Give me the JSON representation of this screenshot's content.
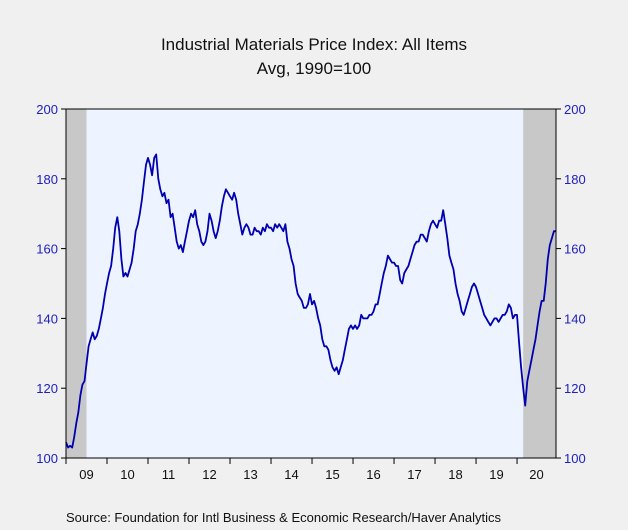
{
  "chart_data": {
    "type": "line",
    "title": "Industrial Materials Price Index: All Items",
    "subtitle": "Avg, 1990=100",
    "source": "Source:  Foundation for Intl Business & Economic Research/Haver Analytics",
    "ylim": [
      100,
      200
    ],
    "yticks": [
      100,
      120,
      140,
      160,
      180,
      200
    ],
    "x_start": 2009.0,
    "x_end": 2020.95,
    "xtick_labels": [
      "09",
      "10",
      "11",
      "12",
      "13",
      "14",
      "15",
      "16",
      "17",
      "18",
      "19",
      "20"
    ],
    "grid": false,
    "recessions": [
      {
        "start": 2009.0,
        "end": 2009.5
      },
      {
        "start": 2020.15,
        "end": 2020.95
      }
    ],
    "colors": {
      "line": "#0000b0",
      "plot_bg": "#eef4ff",
      "recession": "#c8c8c8",
      "axis_labels": "#2020c0"
    },
    "series": [
      {
        "points": [
          [
            2009.0,
            104.5
          ],
          [
            2009.05,
            103
          ],
          [
            2009.1,
            103.5
          ],
          [
            2009.15,
            103
          ],
          [
            2009.2,
            106
          ],
          [
            2009.25,
            110
          ],
          [
            2009.3,
            113
          ],
          [
            2009.35,
            118
          ],
          [
            2009.4,
            121
          ],
          [
            2009.45,
            122
          ],
          [
            2009.5,
            127
          ],
          [
            2009.55,
            132
          ],
          [
            2009.6,
            134
          ],
          [
            2009.65,
            136
          ],
          [
            2009.7,
            134
          ],
          [
            2009.75,
            135
          ],
          [
            2009.8,
            137
          ],
          [
            2009.85,
            140
          ],
          [
            2009.9,
            143
          ],
          [
            2009.95,
            147
          ],
          [
            2010.0,
            150
          ],
          [
            2010.05,
            153
          ],
          [
            2010.1,
            155
          ],
          [
            2010.15,
            160
          ],
          [
            2010.2,
            166
          ],
          [
            2010.25,
            169
          ],
          [
            2010.3,
            165
          ],
          [
            2010.35,
            157
          ],
          [
            2010.4,
            152
          ],
          [
            2010.45,
            153
          ],
          [
            2010.5,
            152
          ],
          [
            2010.55,
            154
          ],
          [
            2010.6,
            156
          ],
          [
            2010.65,
            160
          ],
          [
            2010.7,
            165
          ],
          [
            2010.75,
            167
          ],
          [
            2010.8,
            170
          ],
          [
            2010.85,
            174
          ],
          [
            2010.9,
            179
          ],
          [
            2010.95,
            184
          ],
          [
            2011.0,
            186
          ],
          [
            2011.05,
            184
          ],
          [
            2011.1,
            181
          ],
          [
            2011.15,
            186
          ],
          [
            2011.2,
            187
          ],
          [
            2011.25,
            180
          ],
          [
            2011.3,
            177
          ],
          [
            2011.35,
            175
          ],
          [
            2011.4,
            176
          ],
          [
            2011.45,
            173
          ],
          [
            2011.5,
            174
          ],
          [
            2011.55,
            169
          ],
          [
            2011.6,
            170
          ],
          [
            2011.65,
            166
          ],
          [
            2011.7,
            162
          ],
          [
            2011.75,
            160
          ],
          [
            2011.8,
            161
          ],
          [
            2011.85,
            159
          ],
          [
            2011.9,
            162
          ],
          [
            2011.95,
            165
          ],
          [
            2012.0,
            168
          ],
          [
            2012.05,
            170
          ],
          [
            2012.1,
            169
          ],
          [
            2012.15,
            171
          ],
          [
            2012.2,
            167
          ],
          [
            2012.25,
            165
          ],
          [
            2012.3,
            162
          ],
          [
            2012.35,
            161
          ],
          [
            2012.4,
            162
          ],
          [
            2012.45,
            165
          ],
          [
            2012.5,
            170
          ],
          [
            2012.55,
            168
          ],
          [
            2012.6,
            165
          ],
          [
            2012.65,
            163
          ],
          [
            2012.7,
            165
          ],
          [
            2012.75,
            168
          ],
          [
            2012.8,
            172
          ],
          [
            2012.85,
            175
          ],
          [
            2012.9,
            177
          ],
          [
            2012.95,
            176
          ],
          [
            2013.0,
            175
          ],
          [
            2013.05,
            174
          ],
          [
            2013.1,
            176
          ],
          [
            2013.15,
            174
          ],
          [
            2013.2,
            170
          ],
          [
            2013.25,
            167
          ],
          [
            2013.3,
            164
          ],
          [
            2013.35,
            166
          ],
          [
            2013.4,
            167
          ],
          [
            2013.45,
            166
          ],
          [
            2013.5,
            164
          ],
          [
            2013.55,
            164
          ],
          [
            2013.6,
            166
          ],
          [
            2013.65,
            165
          ],
          [
            2013.7,
            165
          ],
          [
            2013.75,
            164
          ],
          [
            2013.8,
            166
          ],
          [
            2013.85,
            165
          ],
          [
            2013.9,
            167
          ],
          [
            2013.95,
            166
          ],
          [
            2014.0,
            166
          ],
          [
            2014.05,
            165
          ],
          [
            2014.1,
            167
          ],
          [
            2014.15,
            166
          ],
          [
            2014.2,
            167
          ],
          [
            2014.25,
            166
          ],
          [
            2014.3,
            165
          ],
          [
            2014.35,
            167
          ],
          [
            2014.4,
            162
          ],
          [
            2014.45,
            160
          ],
          [
            2014.5,
            157
          ],
          [
            2014.55,
            155
          ],
          [
            2014.6,
            150
          ],
          [
            2014.65,
            147
          ],
          [
            2014.7,
            146
          ],
          [
            2014.75,
            145
          ],
          [
            2014.8,
            143
          ],
          [
            2014.85,
            143
          ],
          [
            2014.9,
            144
          ],
          [
            2014.95,
            147
          ],
          [
            2015.0,
            144
          ],
          [
            2015.05,
            145
          ],
          [
            2015.1,
            143
          ],
          [
            2015.15,
            140
          ],
          [
            2015.2,
            138
          ],
          [
            2015.25,
            134
          ],
          [
            2015.3,
            132
          ],
          [
            2015.35,
            132
          ],
          [
            2015.4,
            131
          ],
          [
            2015.45,
            128
          ],
          [
            2015.5,
            126
          ],
          [
            2015.55,
            125
          ],
          [
            2015.6,
            126
          ],
          [
            2015.65,
            124
          ],
          [
            2015.7,
            126
          ],
          [
            2015.75,
            128
          ],
          [
            2015.8,
            131
          ],
          [
            2015.85,
            134
          ],
          [
            2015.9,
            137
          ],
          [
            2015.95,
            138
          ],
          [
            2016.0,
            137
          ],
          [
            2016.05,
            138
          ],
          [
            2016.1,
            137
          ],
          [
            2016.15,
            138
          ],
          [
            2016.2,
            141
          ],
          [
            2016.25,
            140
          ],
          [
            2016.3,
            140
          ],
          [
            2016.35,
            140
          ],
          [
            2016.4,
            141
          ],
          [
            2016.45,
            141
          ],
          [
            2016.5,
            142
          ],
          [
            2016.55,
            144
          ],
          [
            2016.6,
            144
          ],
          [
            2016.65,
            147
          ],
          [
            2016.7,
            150
          ],
          [
            2016.75,
            153
          ],
          [
            2016.8,
            155
          ],
          [
            2016.85,
            158
          ],
          [
            2016.9,
            157
          ],
          [
            2016.95,
            156
          ],
          [
            2017.0,
            156
          ],
          [
            2017.05,
            155
          ],
          [
            2017.1,
            155
          ],
          [
            2017.15,
            151
          ],
          [
            2017.2,
            150
          ],
          [
            2017.25,
            153
          ],
          [
            2017.3,
            154
          ],
          [
            2017.35,
            155
          ],
          [
            2017.4,
            157
          ],
          [
            2017.45,
            159
          ],
          [
            2017.5,
            161
          ],
          [
            2017.55,
            162
          ],
          [
            2017.6,
            162
          ],
          [
            2017.65,
            164
          ],
          [
            2017.7,
            164
          ],
          [
            2017.75,
            163
          ],
          [
            2017.8,
            162
          ],
          [
            2017.85,
            165
          ],
          [
            2017.9,
            167
          ],
          [
            2017.95,
            168
          ],
          [
            2018.0,
            167
          ],
          [
            2018.05,
            166
          ],
          [
            2018.1,
            168
          ],
          [
            2018.15,
            168
          ],
          [
            2018.2,
            171
          ],
          [
            2018.25,
            167
          ],
          [
            2018.3,
            163
          ],
          [
            2018.35,
            158
          ],
          [
            2018.4,
            156
          ],
          [
            2018.45,
            154
          ],
          [
            2018.5,
            150
          ],
          [
            2018.55,
            147
          ],
          [
            2018.6,
            145
          ],
          [
            2018.65,
            142
          ],
          [
            2018.7,
            141
          ],
          [
            2018.75,
            143
          ],
          [
            2018.8,
            145
          ],
          [
            2018.85,
            147
          ],
          [
            2018.9,
            149
          ],
          [
            2018.95,
            150
          ],
          [
            2019.0,
            149
          ],
          [
            2019.05,
            147
          ],
          [
            2019.1,
            145
          ],
          [
            2019.15,
            143
          ],
          [
            2019.2,
            141
          ],
          [
            2019.25,
            140
          ],
          [
            2019.3,
            139
          ],
          [
            2019.35,
            138
          ],
          [
            2019.4,
            139
          ],
          [
            2019.45,
            140
          ],
          [
            2019.5,
            140
          ],
          [
            2019.55,
            139
          ],
          [
            2019.6,
            140
          ],
          [
            2019.65,
            141
          ],
          [
            2019.7,
            141
          ],
          [
            2019.75,
            142
          ],
          [
            2019.8,
            144
          ],
          [
            2019.85,
            143
          ],
          [
            2019.9,
            140
          ],
          [
            2019.95,
            141
          ],
          [
            2020.0,
            141
          ],
          [
            2020.05,
            133
          ],
          [
            2020.1,
            126
          ],
          [
            2020.15,
            120
          ],
          [
            2020.2,
            115
          ],
          [
            2020.25,
            122
          ],
          [
            2020.3,
            125
          ],
          [
            2020.35,
            128
          ],
          [
            2020.4,
            131
          ],
          [
            2020.45,
            134
          ],
          [
            2020.5,
            138
          ],
          [
            2020.55,
            142
          ],
          [
            2020.6,
            145
          ],
          [
            2020.65,
            145
          ],
          [
            2020.7,
            150
          ],
          [
            2020.75,
            157
          ],
          [
            2020.8,
            161
          ],
          [
            2020.85,
            163
          ],
          [
            2020.9,
            165
          ],
          [
            2020.95,
            165
          ]
        ]
      }
    ]
  }
}
